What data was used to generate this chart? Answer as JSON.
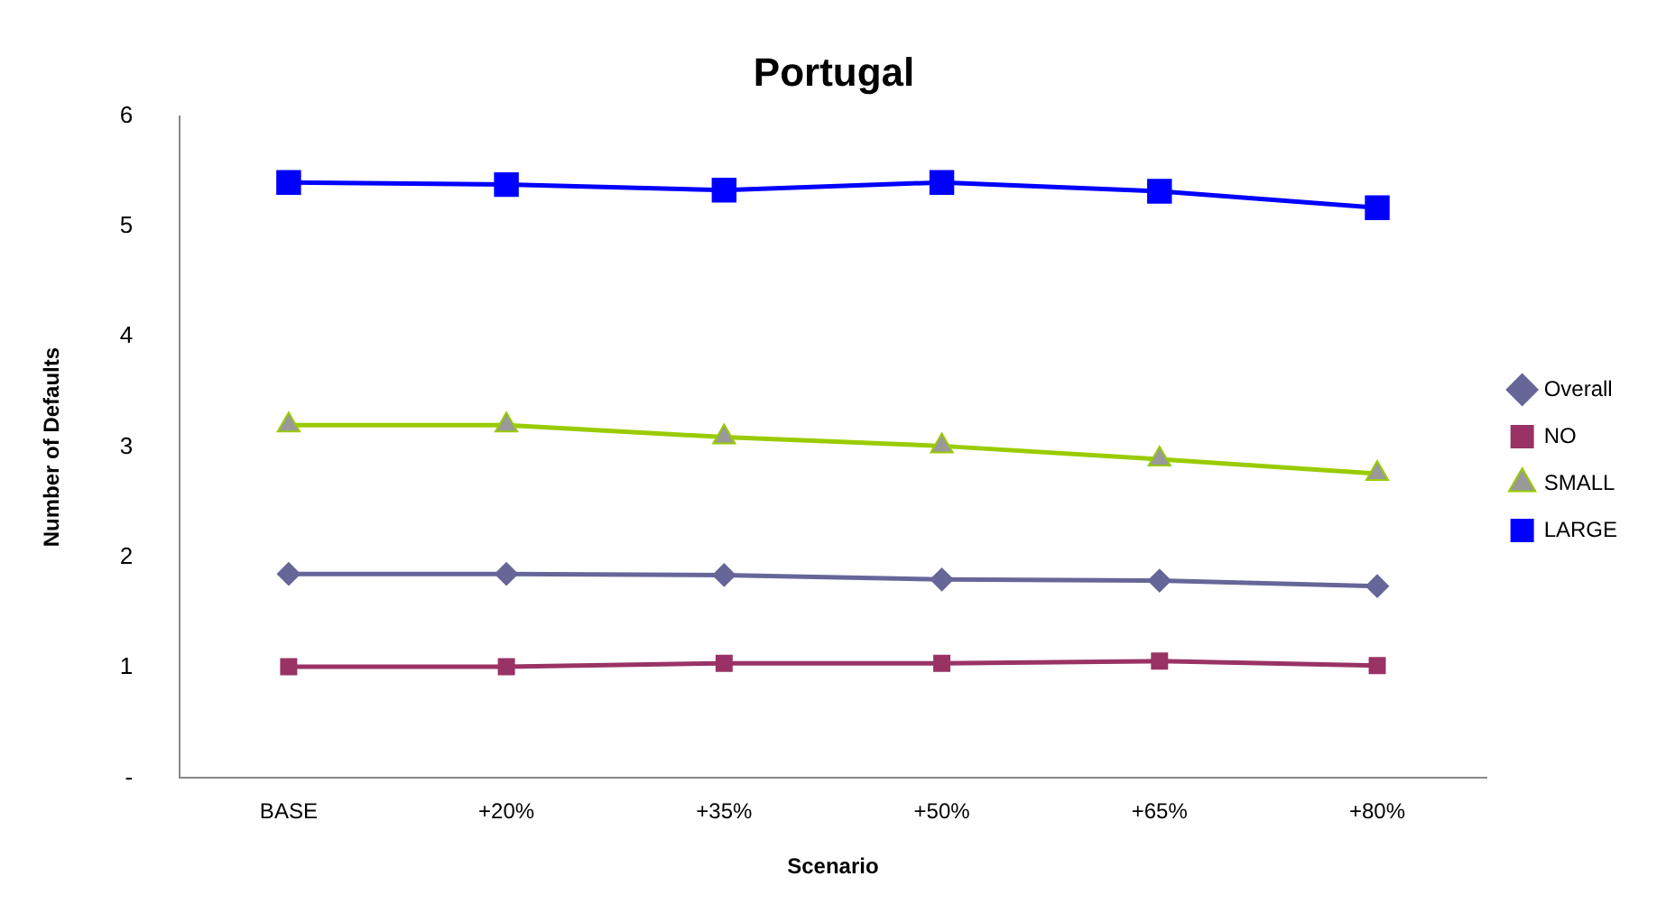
{
  "chart_data": {
    "type": "line",
    "title": "Portugal",
    "xlabel": "Scenario",
    "ylabel": "Number of Defaults",
    "categories": [
      "BASE",
      "+20%",
      "+35%",
      "+50%",
      "+65%",
      "+80%"
    ],
    "ylim": [
      0,
      6
    ],
    "yticks": [
      {
        "value": 0,
        "label": "-"
      },
      1,
      2,
      3,
      4,
      5,
      6
    ],
    "grid": false,
    "legend": "right",
    "series": [
      {
        "name": "Overall",
        "color": "#666699",
        "marker": "diamond",
        "values": [
          1.85,
          1.85,
          1.84,
          1.8,
          1.79,
          1.74
        ]
      },
      {
        "name": "NO",
        "color": "#993366",
        "marker": "square",
        "values": [
          1.01,
          1.01,
          1.04,
          1.04,
          1.06,
          1.02
        ]
      },
      {
        "name": "SMALL",
        "color": "#99cc00",
        "marker": "triangle",
        "values": [
          3.2,
          3.2,
          3.09,
          3.01,
          2.89,
          2.76
        ]
      },
      {
        "name": "LARGE",
        "color": "#0000ff",
        "marker": "square",
        "values": [
          5.4,
          5.38,
          5.33,
          5.4,
          5.32,
          5.17
        ]
      }
    ]
  }
}
